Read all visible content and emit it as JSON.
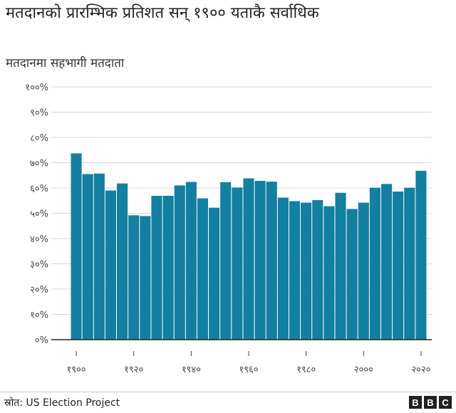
{
  "title": "मतदानको प्रारम्भिक प्रतिशत सन् १९०० यताकै सर्वाधिक",
  "subtitle": "मतदानमा सहभागी मतदाता",
  "source": "स्रोत: US Election Project",
  "logo": "BBC",
  "chart_data": {
    "type": "bar",
    "title": "मतदानको प्रारम्भिक प्रतिशत सन् १९०० यताकै सर्वाधिक",
    "ylabel": "मतदानमा सहभागी मतदाता",
    "xlabel": "",
    "ylim": [
      0,
      100
    ],
    "grid": true,
    "bar_color": "#1380A1",
    "categories": [
      1900,
      1904,
      1908,
      1912,
      1916,
      1920,
      1924,
      1928,
      1932,
      1936,
      1940,
      1944,
      1948,
      1952,
      1956,
      1960,
      1964,
      1968,
      1972,
      1976,
      1980,
      1984,
      1988,
      1992,
      1996,
      2000,
      2004,
      2008,
      2012,
      2016,
      2020
    ],
    "values": [
      73.7,
      65.5,
      65.7,
      59.0,
      61.8,
      49.2,
      48.9,
      56.9,
      56.9,
      61.0,
      62.4,
      55.9,
      52.2,
      62.3,
      60.2,
      63.8,
      62.8,
      62.5,
      56.2,
      54.8,
      54.2,
      55.2,
      52.8,
      58.1,
      51.7,
      54.2,
      60.1,
      61.6,
      58.6,
      60.1,
      66.8
    ],
    "y_ticks": [
      {
        "value": 100,
        "label": "१००%"
      },
      {
        "value": 90,
        "label": "९०%"
      },
      {
        "value": 80,
        "label": "८०%"
      },
      {
        "value": 70,
        "label": "७०%"
      },
      {
        "value": 60,
        "label": "६०%"
      },
      {
        "value": 50,
        "label": "५०%"
      },
      {
        "value": 40,
        "label": "४०%"
      },
      {
        "value": 30,
        "label": "३०%"
      },
      {
        "value": 20,
        "label": "२०%"
      },
      {
        "value": 10,
        "label": "१०%"
      },
      {
        "value": 0,
        "label": "०%"
      }
    ],
    "x_ticks": [
      {
        "value": 1900,
        "label": "१९००"
      },
      {
        "value": 1920,
        "label": "१९२०"
      },
      {
        "value": 1940,
        "label": "१९४०"
      },
      {
        "value": 1960,
        "label": "१९६०"
      },
      {
        "value": 1980,
        "label": "१९८०"
      },
      {
        "value": 2000,
        "label": "२०००"
      },
      {
        "value": 2020,
        "label": "२०२०"
      }
    ]
  }
}
